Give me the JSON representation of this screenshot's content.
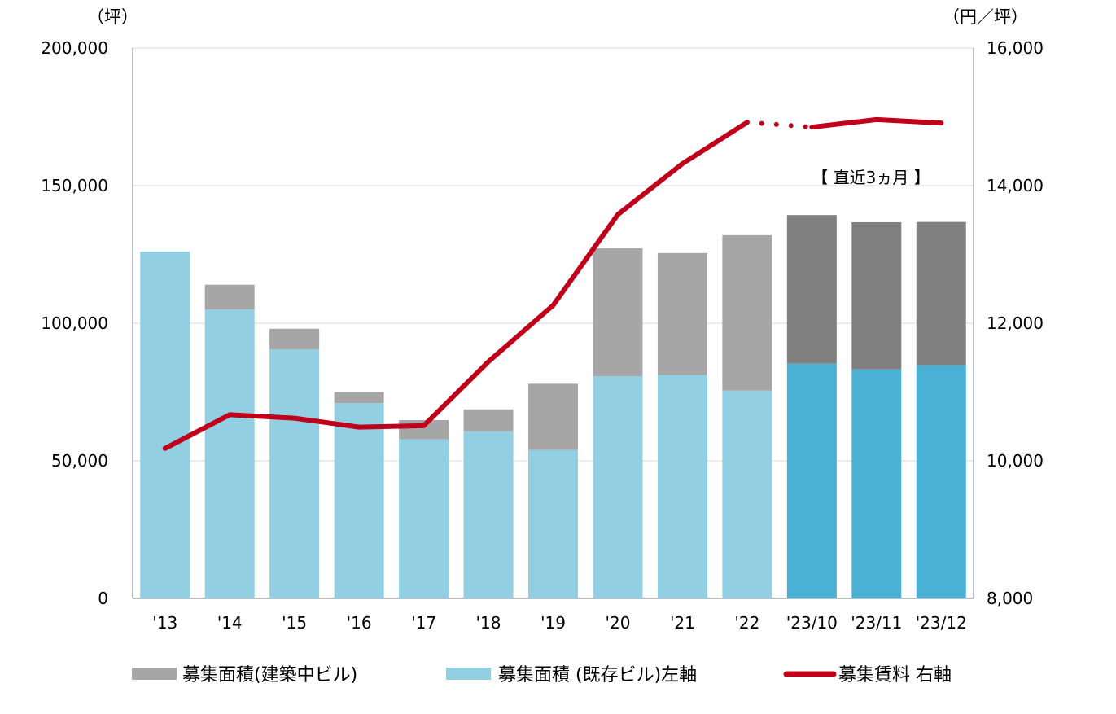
{
  "chart_data": {
    "type": "bar",
    "stacked": true,
    "categories": [
      "'13",
      "'14",
      "'15",
      "'16",
      "'17",
      "'18",
      "'19",
      "'20",
      "'21",
      "'22",
      "'23/10",
      "'23/11",
      "'23/12"
    ],
    "series": [
      {
        "name": "募集面積（既存ビル）左軸",
        "type": "bar",
        "axis": "left",
        "color": "#92cfe3",
        "highlight_color": "#4ab0d4",
        "values": [
          126000,
          105000,
          90500,
          71000,
          57800,
          60700,
          54000,
          80700,
          81200,
          75500,
          85300,
          83200,
          84800
        ]
      },
      {
        "name": "募集面積（建築中ビル）",
        "type": "bar",
        "axis": "left",
        "color": "#a6a6a6",
        "highlight_color": "#808080",
        "values": [
          0,
          9000,
          7500,
          4000,
          7000,
          8000,
          24000,
          46500,
          44300,
          56500,
          54000,
          53500,
          52000
        ]
      },
      {
        "name": "募集賃料 右軸",
        "type": "line",
        "axis": "right",
        "color": "#c0001a",
        "values": [
          10180,
          10670,
          10620,
          10490,
          10510,
          11440,
          12260,
          13580,
          14320,
          14920,
          14850,
          14960,
          14910
        ]
      }
    ],
    "highlight_from_index": 10,
    "dotted_segment_between": [
      9,
      10
    ],
    "left_axis": {
      "unit": "（坪）",
      "ylim": [
        0,
        200000
      ],
      "ticks": [
        0,
        50000,
        100000,
        150000,
        200000
      ],
      "tick_labels": [
        "0",
        "50,000",
        "100,000",
        "150,000",
        "200,000"
      ]
    },
    "right_axis": {
      "unit": "（円／坪）",
      "ylim": [
        8000,
        16000
      ],
      "ticks": [
        8000,
        10000,
        12000,
        14000,
        16000
      ],
      "tick_labels": [
        "8,000",
        "10,000",
        "12,000",
        "14,000",
        "16,000"
      ]
    },
    "annotation": "【 直近3ヵ月 】",
    "grid": true,
    "legend_position": "bottom",
    "legend": [
      {
        "label": "募集面積(建築中ビル)",
        "kind": "bar",
        "color": "#a6a6a6"
      },
      {
        "label": "募集面積 (既存ビル)左軸",
        "kind": "bar",
        "color": "#92cfe3"
      },
      {
        "label": "募集賃料 右軸",
        "kind": "line",
        "color": "#c0001a"
      }
    ]
  }
}
